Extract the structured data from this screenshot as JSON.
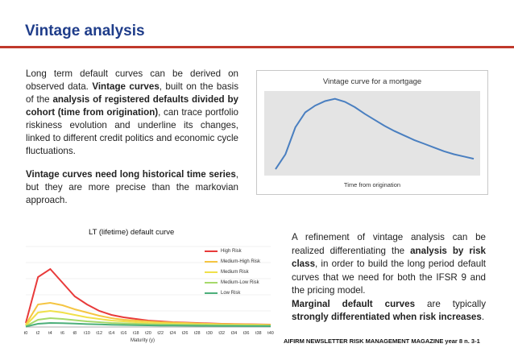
{
  "page_title": "Vintage analysis",
  "left_text": {
    "p1": [
      {
        "t": "Long term default curves can be derived on observed data. ",
        "b": false
      },
      {
        "t": "Vintage curves",
        "b": true
      },
      {
        "t": ", built on the basis of the ",
        "b": false
      },
      {
        "t": "analysis of registered defaults divided by cohort (time from origination)",
        "b": true
      },
      {
        "t": ", can trace portfolio riskiness evolution and underline its changes, linked to different credit politics and economic cycle fluctuations.",
        "b": false
      }
    ],
    "p2": [
      {
        "t": "Vintage curves need long historical time series",
        "b": true
      },
      {
        "t": ", but they are more precise than the markovian approach.",
        "b": false
      }
    ]
  },
  "vintage_chart": {
    "title": "Vintage curve for a mortgage",
    "xlabel": "Time from origination",
    "line_color": "#4a7fc0",
    "bg_color": "#e4e4e4",
    "chart_data": {
      "type": "line",
      "x": [
        0,
        1,
        2,
        3,
        4,
        5,
        6,
        7,
        8,
        9,
        10,
        11,
        12,
        13,
        14,
        15,
        16,
        17,
        18,
        19,
        20
      ],
      "values": [
        0.02,
        0.22,
        0.58,
        0.78,
        0.87,
        0.93,
        0.96,
        0.92,
        0.85,
        0.76,
        0.68,
        0.6,
        0.53,
        0.47,
        0.41,
        0.36,
        0.31,
        0.26,
        0.22,
        0.19,
        0.16
      ],
      "ylim": [
        0,
        1
      ]
    }
  },
  "lt_chart": {
    "title": "LT (lifetime) default curve",
    "xlabel": "Maturity (y)",
    "ticks": [
      "t0",
      "t2",
      "t4",
      "t6",
      "t8",
      "t10",
      "t12",
      "t14",
      "t16",
      "t18",
      "t20",
      "t22",
      "t24",
      "t26",
      "t28",
      "t30",
      "t32",
      "t34",
      "t36",
      "t38",
      "t40"
    ],
    "series": [
      {
        "name": "High Risk",
        "color": "#e83a3a",
        "values": [
          0.05,
          0.62,
          0.72,
          0.55,
          0.38,
          0.28,
          0.2,
          0.15,
          0.12,
          0.1,
          0.08,
          0.07,
          0.06,
          0.055,
          0.05,
          0.045,
          0.04,
          0.038,
          0.035,
          0.033,
          0.03
        ]
      },
      {
        "name": "Medium-High Risk",
        "color": "#f5c542",
        "values": [
          0.03,
          0.28,
          0.3,
          0.27,
          0.22,
          0.18,
          0.14,
          0.11,
          0.09,
          0.08,
          0.07,
          0.06,
          0.055,
          0.05,
          0.045,
          0.04,
          0.038,
          0.035,
          0.033,
          0.03,
          0.028
        ]
      },
      {
        "name": "Medium Risk",
        "color": "#f0e04a",
        "values": [
          0.02,
          0.18,
          0.2,
          0.18,
          0.15,
          0.12,
          0.1,
          0.08,
          0.07,
          0.06,
          0.05,
          0.045,
          0.04,
          0.037,
          0.034,
          0.031,
          0.028,
          0.026,
          0.024,
          0.022,
          0.02
        ]
      },
      {
        "name": "Medium-Low Risk",
        "color": "#a6d96a",
        "values": [
          0.01,
          0.09,
          0.11,
          0.1,
          0.085,
          0.07,
          0.06,
          0.05,
          0.045,
          0.04,
          0.035,
          0.032,
          0.03,
          0.028,
          0.026,
          0.024,
          0.022,
          0.02,
          0.019,
          0.018,
          0.017
        ]
      },
      {
        "name": "Low Risk",
        "color": "#4caf7a",
        "values": [
          0.005,
          0.04,
          0.05,
          0.048,
          0.042,
          0.036,
          0.032,
          0.028,
          0.025,
          0.022,
          0.02,
          0.018,
          0.017,
          0.016,
          0.015,
          0.014,
          0.013,
          0.012,
          0.011,
          0.011,
          0.01
        ]
      }
    ]
  },
  "right_text": {
    "p1": [
      {
        "t": "A refinement of vintage analysis can be realized differentiating the ",
        "b": false
      },
      {
        "t": "analysis by risk class",
        "b": true
      },
      {
        "t": ", in order to build the long period default curves that we need for both the IFSR 9 and the pricing model.",
        "b": false
      }
    ],
    "p2": [
      {
        "t": "Marginal default curves",
        "b": true
      },
      {
        "t": " are typically ",
        "b": false
      },
      {
        "t": "strongly differentiated when risk increases",
        "b": true
      },
      {
        "t": ".",
        "b": false
      }
    ]
  },
  "footer": "AIFIRM NEWSLETTER RISK MANAGEMENT MAGAZINE year 8 n. 3-1",
  "colors": {
    "title": "#1f3d8a",
    "rule": "#c0392b"
  }
}
